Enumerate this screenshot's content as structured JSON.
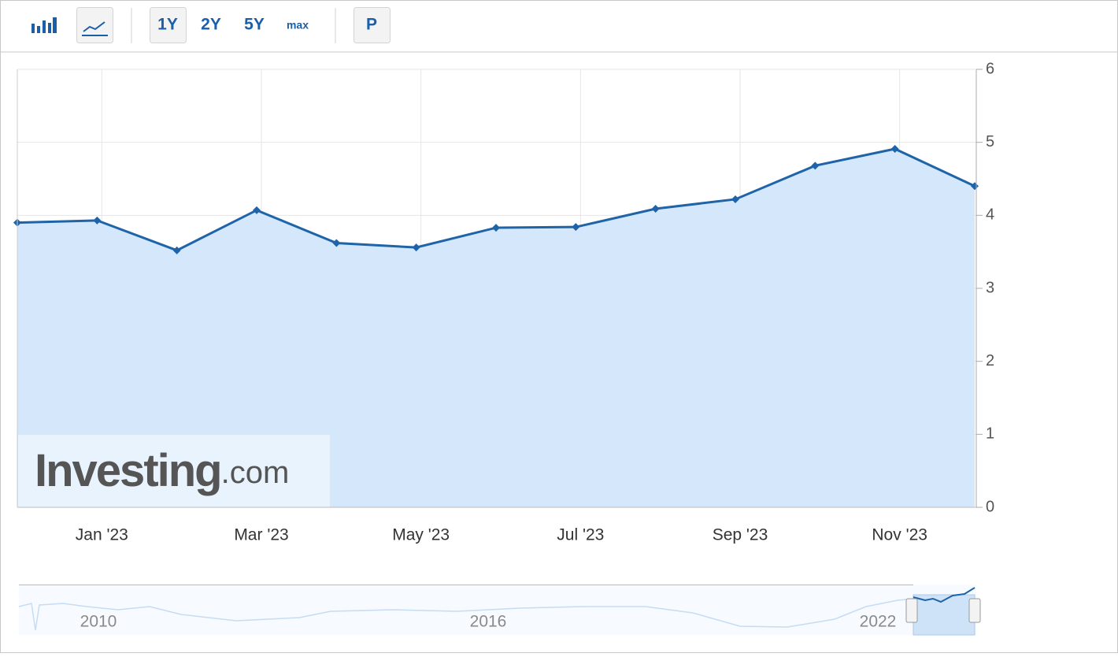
{
  "toolbar": {
    "ranges": [
      "1Y",
      "2Y",
      "5Y",
      "max"
    ],
    "mode": "P"
  },
  "chart_data": {
    "type": "line",
    "categories": [
      null,
      "Jan '23",
      null,
      "Mar '23",
      null,
      "May '23",
      null,
      "Jul '23",
      null,
      "Sep '23",
      null,
      "Nov '23",
      null
    ],
    "series": [
      {
        "color": "#1f64a8",
        "fill": "#d5e8fb",
        "values": [
          3.9,
          3.93,
          3.52,
          4.07,
          3.62,
          3.56,
          3.83,
          3.84,
          4.09,
          4.22,
          4.68,
          4.91,
          4.4
        ]
      }
    ],
    "ylim": [
      0,
      6
    ],
    "yticks": [
      0,
      1,
      2,
      3,
      4,
      5,
      6
    ],
    "grid": true,
    "y_axis_side": "right"
  },
  "watermark": {
    "brand": "Investing",
    "suffix": ".com"
  },
  "navigator": {
    "labels": [
      "2010",
      "2016",
      "2022"
    ]
  }
}
